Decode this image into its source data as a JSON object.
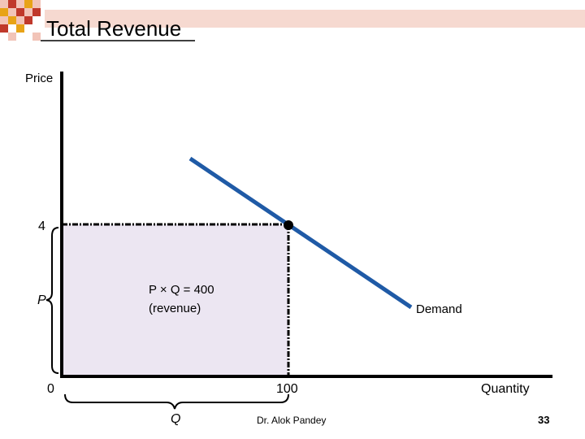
{
  "slide": {
    "title": "Total Revenue",
    "footer_author": "Dr. Alok Pandey",
    "page_number": "33",
    "decoration_colors": [
      "#E8A317",
      "#C0392B",
      "#F2C4B8"
    ]
  },
  "diagram": {
    "y_axis_label": "Price",
    "x_axis_label": "Quantity",
    "price_tick": "4",
    "quantity_tick": "100",
    "origin_label": "0",
    "price_bracket_label": "P",
    "quantity_bracket_label": "Q",
    "revenue_label_line1": "P × Q = 400",
    "revenue_label_line2": "(revenue)",
    "demand_label": "Demand",
    "colors": {
      "demand_line": "#1F5AA6",
      "revenue_fill": "#ECE6F2",
      "axes": "#000000"
    }
  }
}
